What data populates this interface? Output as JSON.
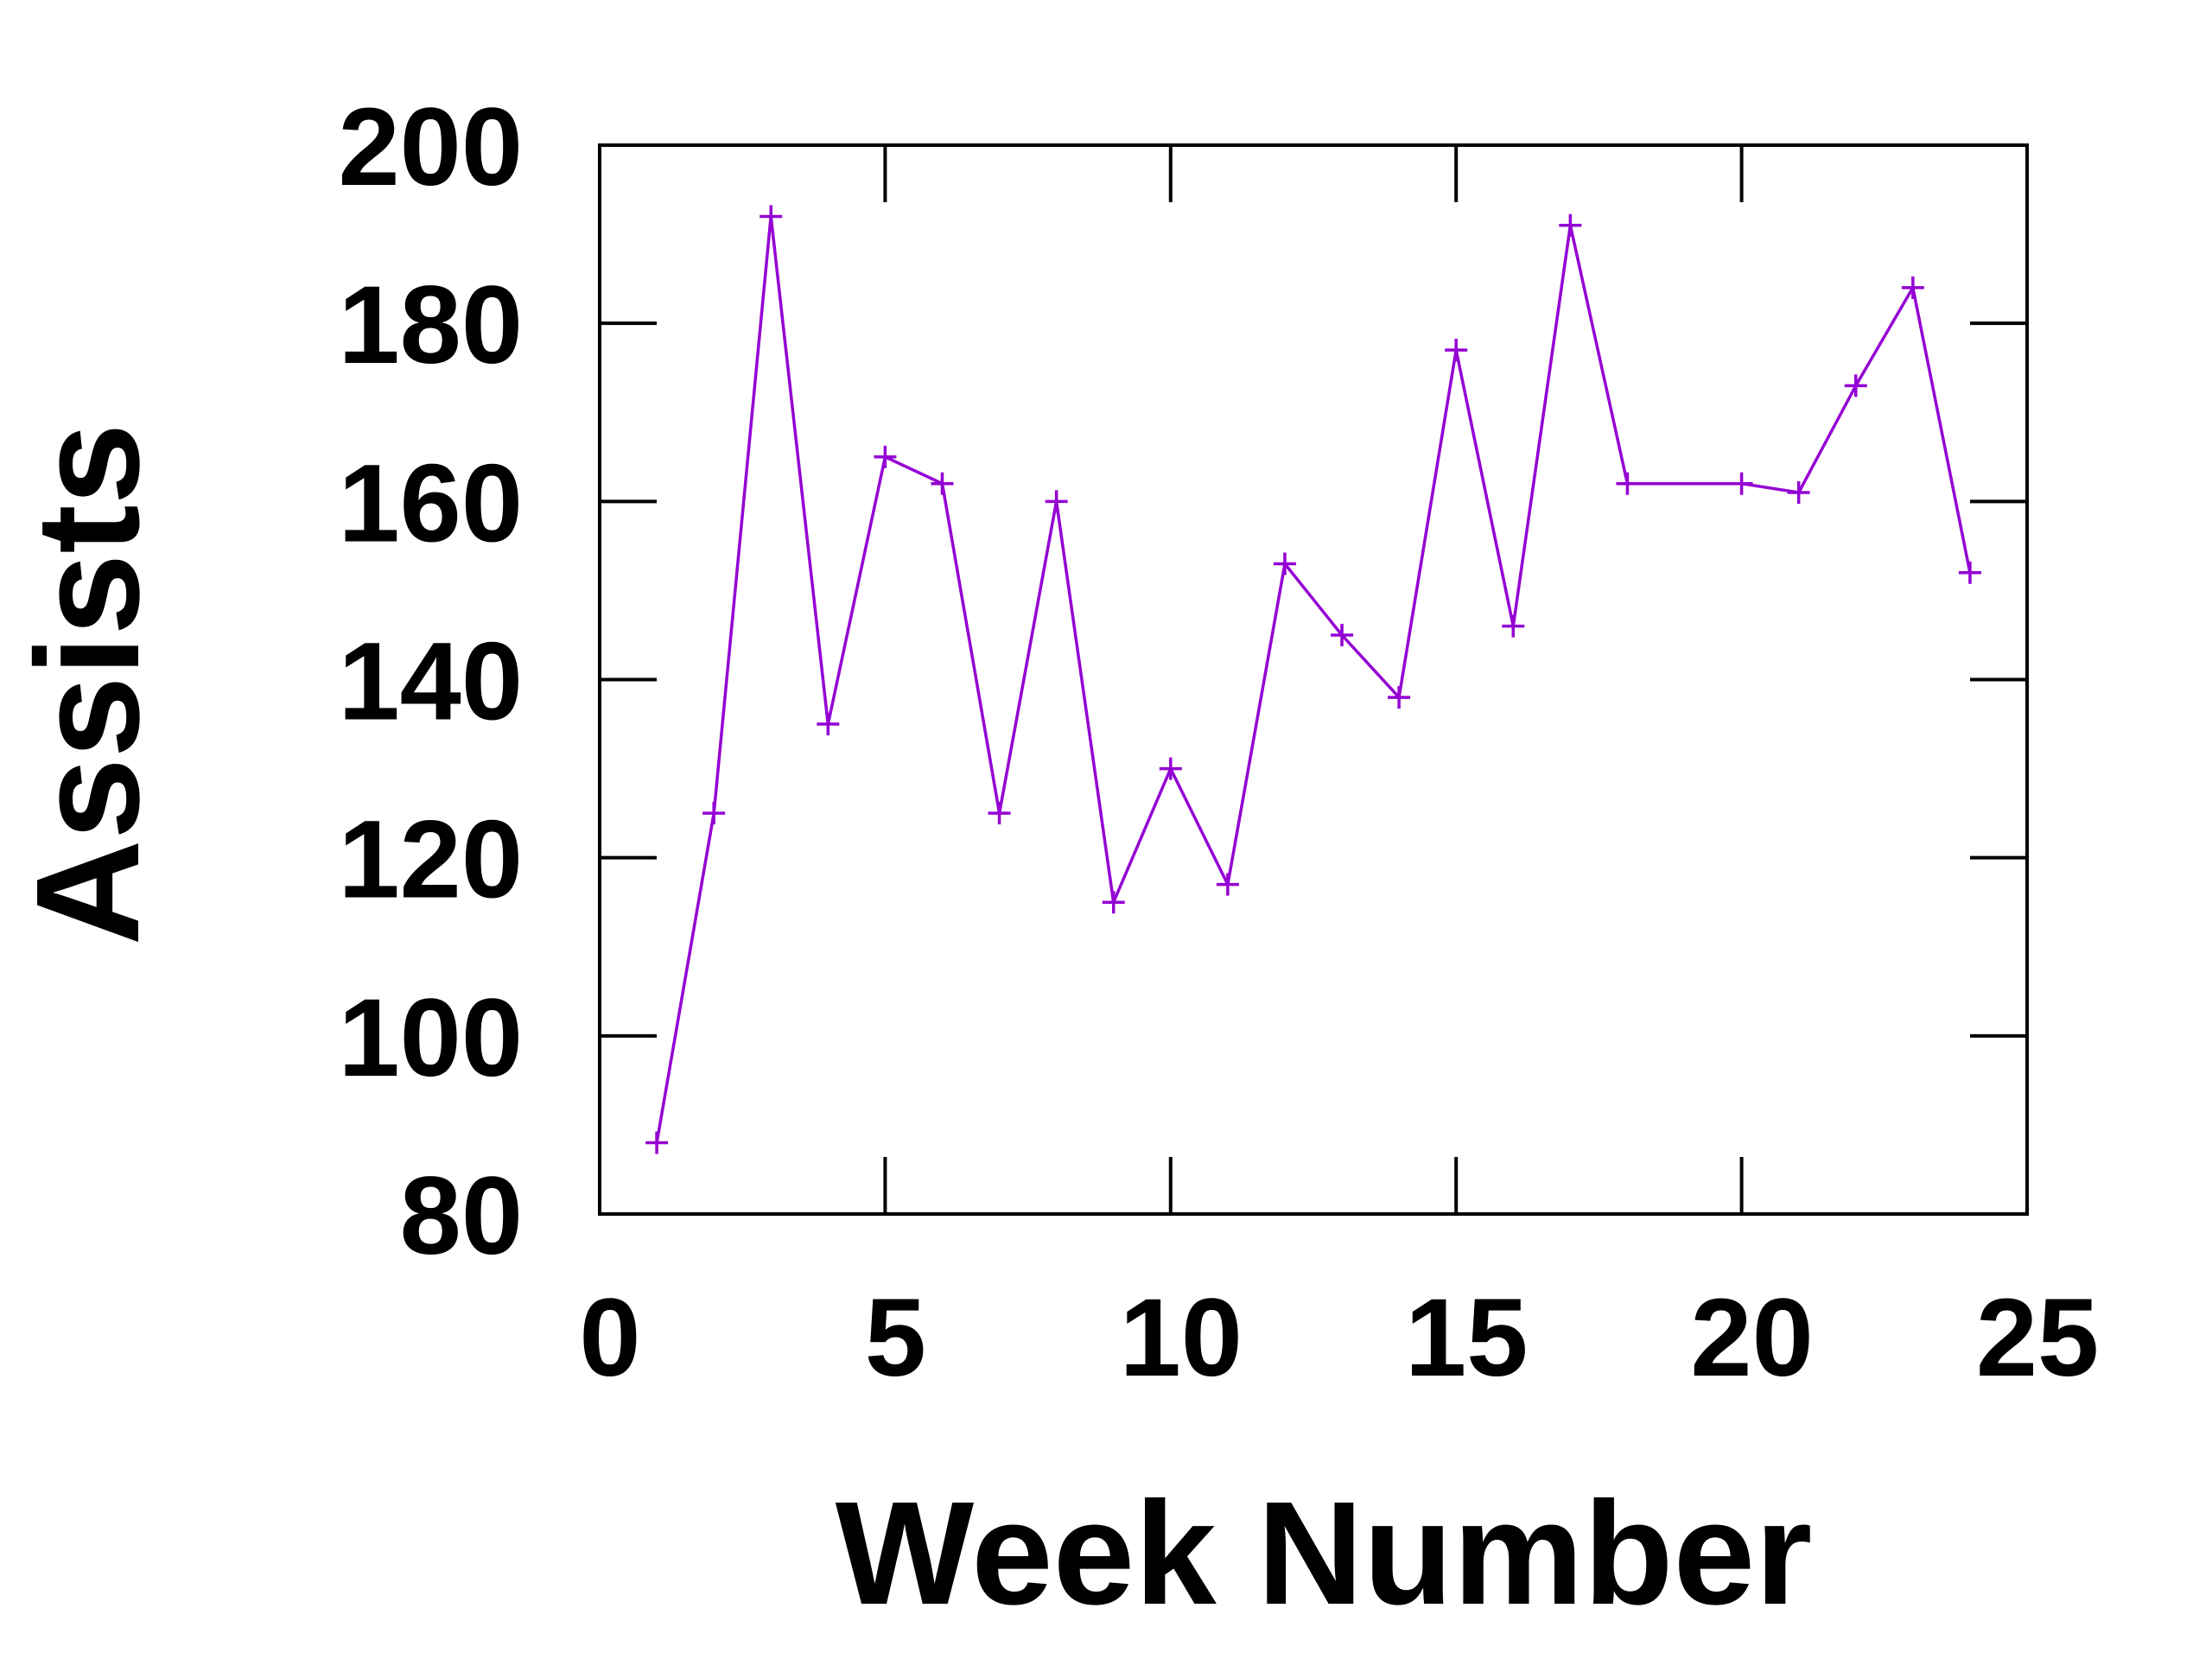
{
  "chart_data": {
    "type": "line",
    "xlabel": "Week Number",
    "ylabel": "Assists",
    "xlim": [
      0,
      25
    ],
    "ylim": [
      80,
      200
    ],
    "xticks": [
      0,
      5,
      10,
      15,
      20,
      25
    ],
    "yticks": [
      80,
      100,
      120,
      140,
      160,
      180,
      200
    ],
    "xtick_labels": [
      "0",
      "5",
      "10",
      "15",
      "20",
      "25"
    ],
    "ytick_labels": [
      "80",
      "100",
      "120",
      "140",
      "160",
      "180",
      "200"
    ],
    "grid": false,
    "legend": "none",
    "series": [
      {
        "color": "#9400d3",
        "marker": "plus",
        "x": [
          1,
          2,
          3,
          4,
          5,
          6,
          7,
          8,
          9,
          10,
          11,
          12,
          13,
          14,
          15,
          16,
          17,
          18,
          20,
          21,
          22,
          23,
          24
        ],
        "values": [
          88,
          125,
          192,
          135,
          165,
          162,
          125,
          160,
          115,
          130,
          117,
          153,
          145,
          138,
          177,
          146,
          191,
          162,
          162,
          161,
          173,
          184,
          152
        ]
      }
    ]
  }
}
